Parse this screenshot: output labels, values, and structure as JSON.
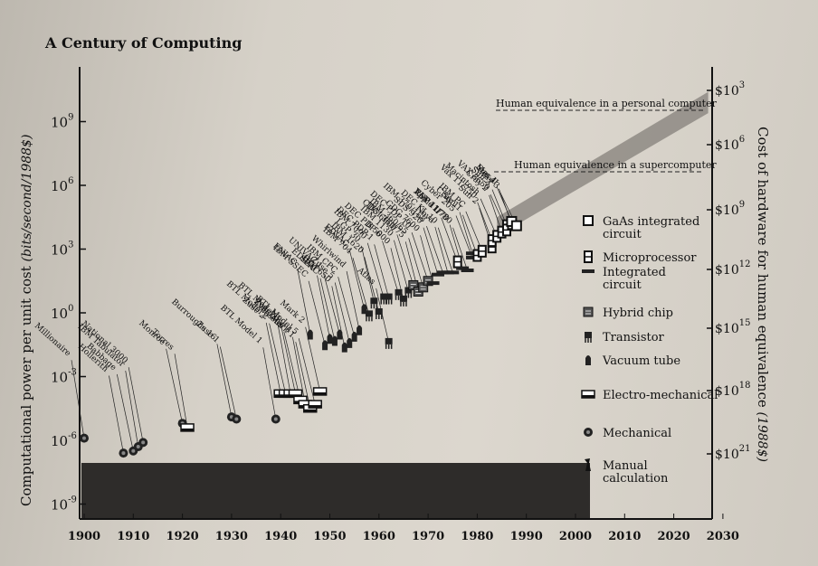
{
  "page_title": "A Century of Computing",
  "chart_data": {
    "type": "scatter",
    "title": "A Century of Computing",
    "ylabel": "Computational power per unit cost",
    "ylabel_units": "(bits/second/1988$)",
    "y2label": "Cost of hardware for human equivalence",
    "y2label_units": "(1988$)",
    "x_ticks": [
      "1900",
      "1910",
      "1920",
      "1930",
      "1940",
      "1950",
      "1960",
      "1970",
      "1980",
      "1990",
      "2000",
      "2010",
      "2020",
      "2030"
    ],
    "xlim": [
      1900,
      2030
    ],
    "y_log_exponent_ticks": [
      9,
      6,
      3,
      0,
      -3,
      -6,
      -9
    ],
    "y_tick_base": "10",
    "ylim_exponent": [
      -9,
      11
    ],
    "y2_tick_exponents": [
      "3",
      "6",
      "9",
      "12",
      "15",
      "18",
      "21"
    ],
    "y2_tick_base": "$10",
    "annotations": [
      {
        "text": "Human equivalence in a personal computer"
      },
      {
        "text": "Human equivalence in a supercomputer"
      }
    ],
    "legend": [
      {
        "label": "GaAs integrated circuit",
        "icon": "gaas-icon"
      },
      {
        "label": "Microprocessor",
        "icon": "microprocessor-icon"
      },
      {
        "label": "Integrated circuit",
        "icon": "ic-icon"
      },
      {
        "label": "Hybrid chip",
        "icon": "hybrid-icon"
      },
      {
        "label": "Transistor",
        "icon": "transistor-icon"
      },
      {
        "label": "Vacuum tube",
        "icon": "vacuum-tube-icon"
      },
      {
        "label": "Electro-mechanical",
        "icon": "electromechanical-icon"
      },
      {
        "label": "Mechanical",
        "icon": "mechanical-icon"
      },
      {
        "label": "Manual calculation",
        "icon": "manual-icon"
      }
    ],
    "points": [
      {
        "name": "Millionaire",
        "year": 1900,
        "exp": -5.9,
        "tech": "mechanical"
      },
      {
        "name": "Hollerith",
        "year": 1908,
        "exp": -6.6,
        "tech": "mechanical"
      },
      {
        "name": "Babbage",
        "year": 1910,
        "exp": -6.5,
        "tech": "mechanical"
      },
      {
        "name": "IBM Tabulator",
        "year": 1911,
        "exp": -6.3,
        "tech": "mechanical"
      },
      {
        "name": "National 3000",
        "year": 1912,
        "exp": -6.1,
        "tech": "mechanical"
      },
      {
        "name": "Monroe",
        "year": 1920,
        "exp": -5.2,
        "tech": "mechanical"
      },
      {
        "name": "Torres",
        "year": 1921,
        "exp": -5.4,
        "tech": "electromechanical"
      },
      {
        "name": "Burroughs 16",
        "year": 1930,
        "exp": -4.9,
        "tech": "mechanical"
      },
      {
        "name": "Zuse 1",
        "year": 1931,
        "exp": -5.0,
        "tech": "mechanical"
      },
      {
        "name": "BTL Model 1",
        "year": 1939,
        "exp": -5.0,
        "tech": "mechanical"
      },
      {
        "name": "Zuse 2",
        "year": 1940,
        "exp": -3.8,
        "tech": "electromechanical"
      },
      {
        "name": "BTL Model 2",
        "year": 1941,
        "exp": -3.8,
        "tech": "electromechanical"
      },
      {
        "name": "Zuse 3",
        "year": 1942,
        "exp": -3.8,
        "tech": "electromechanical"
      },
      {
        "name": "BTL Model 3",
        "year": 1943,
        "exp": -3.8,
        "tech": "electromechanical"
      },
      {
        "name": "Colossus",
        "year": 1944,
        "exp": -4.1,
        "tech": "electromechanical"
      },
      {
        "name": "Zuse 4",
        "year": 1945,
        "exp": -4.3,
        "tech": "electromechanical"
      },
      {
        "name": "Mark 1",
        "year": 1946,
        "exp": -4.5,
        "tech": "electromechanical"
      },
      {
        "name": "BTL Model 5",
        "year": 1947,
        "exp": -4.3,
        "tech": "electromechanical"
      },
      {
        "name": "ENIAC",
        "year": 1946,
        "exp": -1.0,
        "tech": "vacuum-tube"
      },
      {
        "name": "Mark 2",
        "year": 1948,
        "exp": -3.7,
        "tech": "electromechanical"
      },
      {
        "name": "IBM SSEC",
        "year": 1949,
        "exp": -1.5,
        "tech": "vacuum-tube"
      },
      {
        "name": "EDSAC",
        "year": 1950,
        "exp": -1.2,
        "tech": "vacuum-tube"
      },
      {
        "name": "SEAC",
        "year": 1951,
        "exp": -1.3,
        "tech": "vacuum-tube"
      },
      {
        "name": "UNIVAC 1",
        "year": 1952,
        "exp": -1.0,
        "tech": "vacuum-tube"
      },
      {
        "name": "IBM 650",
        "year": 1953,
        "exp": -1.6,
        "tech": "vacuum-tube"
      },
      {
        "name": "Zuse 5",
        "year": 1954,
        "exp": -1.4,
        "tech": "vacuum-tube"
      },
      {
        "name": "IBM CPC",
        "year": 1955,
        "exp": -1.1,
        "tech": "vacuum-tube"
      },
      {
        "name": "Whirlwind",
        "year": 1956,
        "exp": -0.8,
        "tech": "vacuum-tube"
      },
      {
        "name": "EDVAC",
        "year": 1957,
        "exp": 0.2,
        "tech": "vacuum-tube"
      },
      {
        "name": "IBM 704",
        "year": 1958,
        "exp": -0.1,
        "tech": "transistor"
      },
      {
        "name": "LGP 30",
        "year": 1959,
        "exp": 0.5,
        "tech": "transistor"
      },
      {
        "name": "IBM 1620",
        "year": 1960,
        "exp": 0.0,
        "tech": "transistor"
      },
      {
        "name": "IBM 7090",
        "year": 1961,
        "exp": 0.7,
        "tech": "transistor"
      },
      {
        "name": "Atlas",
        "year": 1962,
        "exp": -1.4,
        "tech": "transistor"
      },
      {
        "name": "DEC PDP-1",
        "year": 1962,
        "exp": 0.7,
        "tech": "transistor"
      },
      {
        "name": "DEC PDP 6",
        "year": 1964,
        "exp": 0.9,
        "tech": "transistor"
      },
      {
        "name": "B 5000",
        "year": 1965,
        "exp": 0.6,
        "tech": "transistor"
      },
      {
        "name": "IBM 1130",
        "year": 1966,
        "exp": 1.0,
        "tech": "transistor"
      },
      {
        "name": "CDC 6600",
        "year": 1967,
        "exp": 1.3,
        "tech": "hybrid"
      },
      {
        "name": "IBM 360/75",
        "year": 1968,
        "exp": 1.0,
        "tech": "hybrid"
      },
      {
        "name": "IBM 360/65",
        "year": 1969,
        "exp": 1.2,
        "tech": "hybrid"
      },
      {
        "name": "DEC PDP 10",
        "year": 1970,
        "exp": 1.5,
        "tech": "hybrid"
      },
      {
        "name": "CDC 7600",
        "year": 1971,
        "exp": 1.4,
        "tech": "ic"
      },
      {
        "name": "SDS 920",
        "year": 1972,
        "exp": 1.8,
        "tech": "ic"
      },
      {
        "name": "IBM 370/168",
        "year": 1973,
        "exp": 1.9,
        "tech": "ic"
      },
      {
        "name": "Nova",
        "year": 1974,
        "exp": 1.9,
        "tech": "ic"
      },
      {
        "name": "DEC KL 10",
        "year": 1975,
        "exp": 1.9,
        "tech": "ic"
      },
      {
        "name": "Apple II",
        "year": 1976,
        "exp": 2.4,
        "tech": "microprocessor"
      },
      {
        "name": "PDP 11/70",
        "year": 1977,
        "exp": 2.1,
        "tech": "ic"
      },
      {
        "name": "VAX 11/780",
        "year": 1978,
        "exp": 2.0,
        "tech": "ic"
      },
      {
        "name": "Cyber 205",
        "year": 1979,
        "exp": 2.6,
        "tech": "ic"
      },
      {
        "name": "Cray 1",
        "year": 1979,
        "exp": 2.8,
        "tech": "ic"
      },
      {
        "name": "Sun 1",
        "year": 1980,
        "exp": 2.7,
        "tech": "microprocessor"
      },
      {
        "name": "IBM PC",
        "year": 1981,
        "exp": 2.9,
        "tech": "microprocessor"
      },
      {
        "name": "Sun 2",
        "year": 1983,
        "exp": 3.1,
        "tech": "microprocessor"
      },
      {
        "name": "Vax 11/750",
        "year": 1983,
        "exp": 3.4,
        "tech": "microprocessor"
      },
      {
        "name": "Macintosh",
        "year": 1984,
        "exp": 3.6,
        "tech": "microprocessor"
      },
      {
        "name": "Cray 2",
        "year": 1985,
        "exp": 3.8,
        "tech": "microprocessor"
      },
      {
        "name": "Sun 3",
        "year": 1986,
        "exp": 4.1,
        "tech": "microprocessor"
      },
      {
        "name": "VAX 8650",
        "year": 1986,
        "exp": 3.9,
        "tech": "microprocessor"
      },
      {
        "name": "Mac II",
        "year": 1987,
        "exp": 4.2,
        "tech": "microprocessor"
      },
      {
        "name": "Sun 4",
        "year": 1987,
        "exp": 4.3,
        "tech": "gaas"
      },
      {
        "name": "Cray 3",
        "year": 1988,
        "exp": 4.1,
        "tech": "gaas"
      }
    ]
  }
}
